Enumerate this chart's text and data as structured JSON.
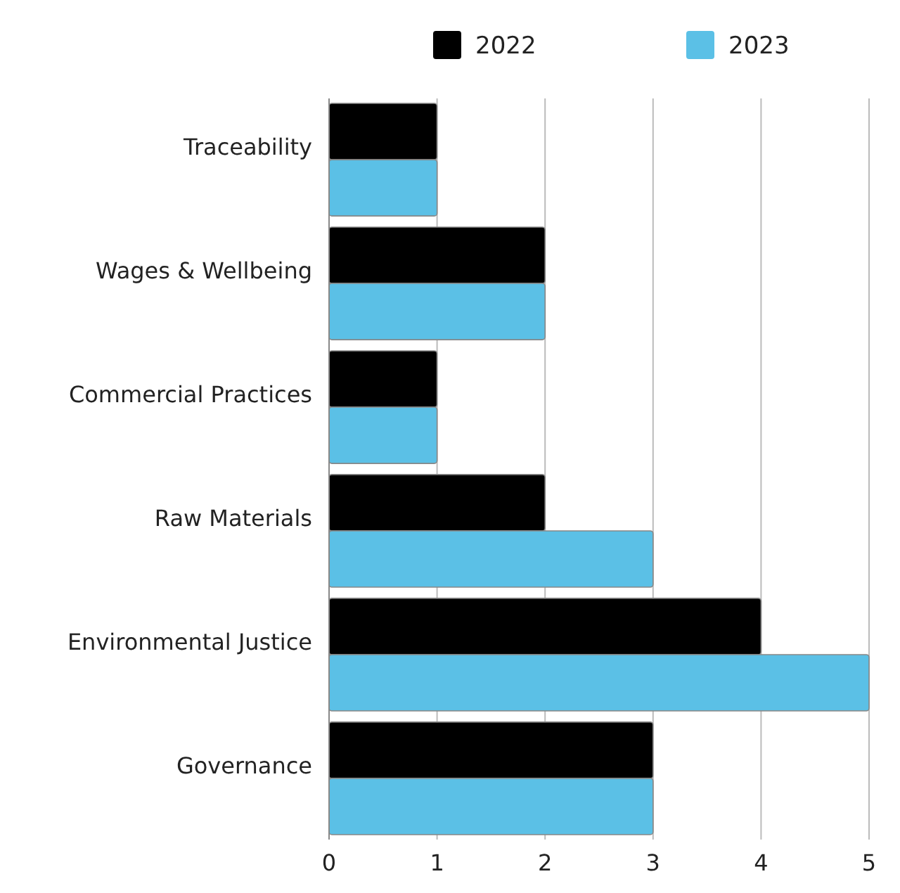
{
  "chart_data": {
    "type": "bar",
    "orientation": "horizontal",
    "categories": [
      "Traceability",
      "Wages & Wellbeing",
      "Commercial Practices",
      "Raw Materials",
      "Environmental Justice",
      "Governance"
    ],
    "series": [
      {
        "name": "2022",
        "color": "#000000",
        "values": [
          1,
          2,
          1,
          2,
          4,
          3
        ]
      },
      {
        "name": "2023",
        "color": "#5bc0e6",
        "values": [
          1,
          2,
          1,
          3,
          5,
          3
        ]
      }
    ],
    "xlim": [
      0,
      5
    ],
    "xticks": [
      0,
      1,
      2,
      3,
      4,
      5
    ],
    "grid": "x",
    "legend": "top"
  }
}
